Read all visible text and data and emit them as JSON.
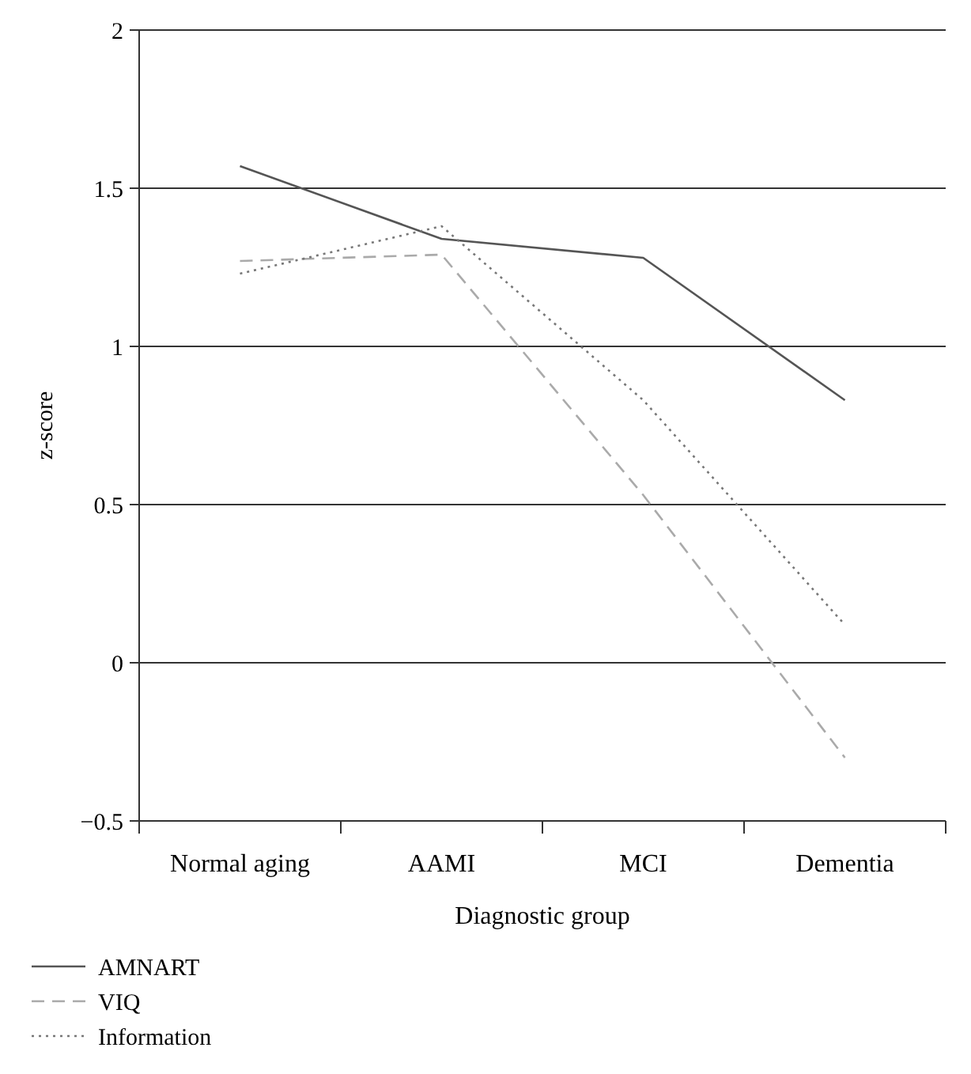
{
  "chart_data": {
    "type": "line",
    "xlabel": "Diagnostic group",
    "ylabel": "z-score",
    "categories": [
      "Normal aging",
      "AAMI",
      "MCI",
      "Dementia"
    ],
    "series": [
      {
        "name": "AMNART",
        "color": "#555555",
        "line_style": "solid",
        "values": [
          1.57,
          1.34,
          1.28,
          0.83
        ]
      },
      {
        "name": "VIQ",
        "color": "#aaaaaa",
        "line_style": "dashed",
        "values": [
          1.27,
          1.29,
          0.53,
          -0.3
        ]
      },
      {
        "name": "Information",
        "color": "#777777",
        "line_style": "dotted",
        "values": [
          1.23,
          1.38,
          0.83,
          0.12
        ]
      }
    ],
    "ylim": [
      -0.5,
      2
    ],
    "yticks": [
      {
        "value": -0.5,
        "label": "−0.5"
      },
      0,
      0.5,
      1,
      1.5,
      2
    ],
    "grid": "y",
    "legend": "bottom",
    "marker": "none"
  }
}
